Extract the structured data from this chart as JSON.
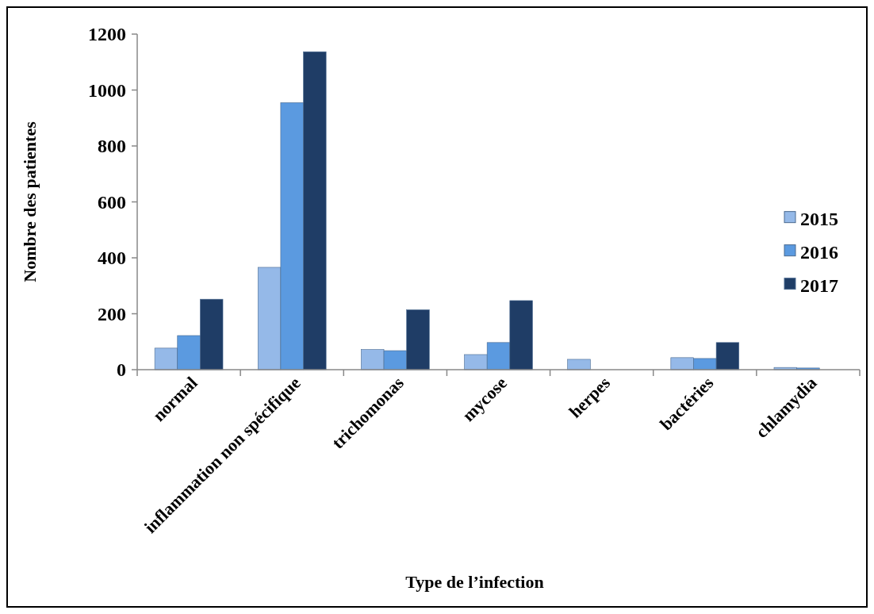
{
  "chart_data": {
    "type": "bar",
    "xlabel": "Type de l’infection",
    "ylabel": "Nombre des patientes",
    "categories": [
      "normal",
      "inflammation non spécifique",
      "trichomonas",
      "mycose",
      "herpes",
      "bactéries",
      "chlamydia"
    ],
    "series": [
      {
        "name": "2015",
        "color": "#95b9e8",
        "values": [
          77,
          366,
          72,
          54,
          37,
          43,
          8
        ]
      },
      {
        "name": "2016",
        "color": "#5b9ae0",
        "values": [
          122,
          955,
          68,
          97,
          0,
          40,
          6
        ]
      },
      {
        "name": "2017",
        "color": "#1f3d66",
        "values": [
          252,
          1137,
          214,
          247,
          0,
          97,
          0
        ]
      }
    ],
    "ylim": [
      0,
      1200
    ],
    "yticks": [
      0,
      200,
      400,
      600,
      800,
      1000,
      1200
    ],
    "grid": false,
    "legend": "right"
  }
}
